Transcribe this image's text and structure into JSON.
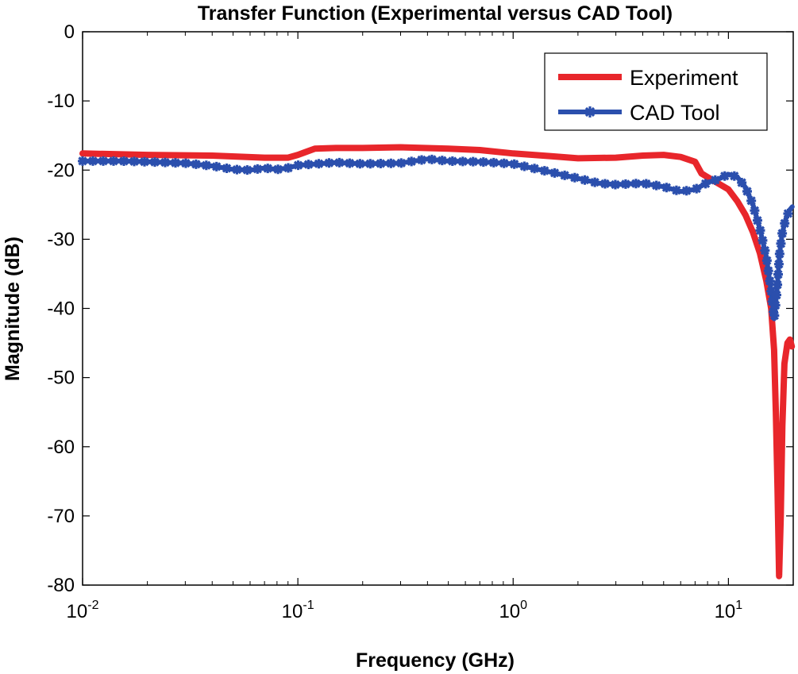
{
  "chart_data": {
    "type": "line",
    "title": "Transfer Function (Experimental versus CAD Tool)",
    "xlabel": "Frequency (GHz)",
    "ylabel": "Magnitude (dB)",
    "xscale": "log",
    "xlim": [
      0.01,
      20
    ],
    "ylim": [
      -80,
      0
    ],
    "xticks": [
      {
        "value": 0.01,
        "base": "10",
        "exp": "-2"
      },
      {
        "value": 0.1,
        "base": "10",
        "exp": "-1"
      },
      {
        "value": 1,
        "base": "10",
        "exp": "0"
      },
      {
        "value": 10,
        "base": "10",
        "exp": "1"
      }
    ],
    "yticks": [
      0,
      -10,
      -20,
      -30,
      -40,
      -50,
      -60,
      -70,
      -80
    ],
    "grid": false,
    "legend_position": "top-right",
    "series": [
      {
        "name": "Experiment",
        "color": "#e8262b",
        "marker": "none",
        "points": [
          [
            0.01,
            -17.6
          ],
          [
            0.02,
            -17.8
          ],
          [
            0.04,
            -17.9
          ],
          [
            0.07,
            -18.2
          ],
          [
            0.09,
            -18.2
          ],
          [
            0.1,
            -17.8
          ],
          [
            0.12,
            -16.9
          ],
          [
            0.15,
            -16.8
          ],
          [
            0.2,
            -16.8
          ],
          [
            0.3,
            -16.7
          ],
          [
            0.5,
            -16.9
          ],
          [
            0.7,
            -17.1
          ],
          [
            1.0,
            -17.6
          ],
          [
            1.5,
            -18.0
          ],
          [
            2.0,
            -18.3
          ],
          [
            3.0,
            -18.2
          ],
          [
            4.0,
            -17.9
          ],
          [
            5.0,
            -17.8
          ],
          [
            6.0,
            -18.1
          ],
          [
            7.0,
            -18.8
          ],
          [
            7.5,
            -20.5
          ],
          [
            8.5,
            -21.5
          ],
          [
            10.0,
            -22.8
          ],
          [
            11.0,
            -24.5
          ],
          [
            12.0,
            -26.5
          ],
          [
            13.0,
            -29.0
          ],
          [
            14.0,
            -32.0
          ],
          [
            15.0,
            -36.0
          ],
          [
            15.8,
            -40.0
          ],
          [
            16.3,
            -46.0
          ],
          [
            16.6,
            -55.0
          ],
          [
            16.9,
            -66.0
          ],
          [
            17.2,
            -78.7
          ],
          [
            17.5,
            -70.0
          ],
          [
            17.8,
            -57.0
          ],
          [
            18.2,
            -48.0
          ],
          [
            18.8,
            -45.0
          ],
          [
            19.3,
            -44.5
          ],
          [
            19.7,
            -45.5
          ]
        ]
      },
      {
        "name": "CAD Tool",
        "color": "#2b4fad",
        "marker": "asterisk",
        "points": [
          [
            0.01,
            -18.7
          ],
          [
            0.015,
            -18.7
          ],
          [
            0.02,
            -18.8
          ],
          [
            0.03,
            -19.0
          ],
          [
            0.04,
            -19.4
          ],
          [
            0.05,
            -19.9
          ],
          [
            0.06,
            -20.0
          ],
          [
            0.07,
            -19.7
          ],
          [
            0.08,
            -19.9
          ],
          [
            0.09,
            -19.7
          ],
          [
            0.1,
            -19.3
          ],
          [
            0.15,
            -18.9
          ],
          [
            0.2,
            -19.1
          ],
          [
            0.3,
            -19.0
          ],
          [
            0.4,
            -18.4
          ],
          [
            0.5,
            -18.7
          ],
          [
            0.7,
            -18.8
          ],
          [
            1.0,
            -19.1
          ],
          [
            1.5,
            -20.3
          ],
          [
            2.0,
            -21.2
          ],
          [
            2.5,
            -21.9
          ],
          [
            3.0,
            -22.1
          ],
          [
            4.0,
            -21.9
          ],
          [
            5.0,
            -22.4
          ],
          [
            6.0,
            -23.1
          ],
          [
            7.0,
            -22.8
          ],
          [
            8.0,
            -21.8
          ],
          [
            9.0,
            -21.3
          ],
          [
            10.0,
            -20.6
          ],
          [
            11.0,
            -21.0
          ],
          [
            12.0,
            -22.5
          ],
          [
            13.0,
            -25.0
          ],
          [
            14.0,
            -28.5
          ],
          [
            15.0,
            -32.5
          ],
          [
            15.8,
            -37.5
          ],
          [
            16.3,
            -41.5
          ],
          [
            16.8,
            -37.5
          ],
          [
            17.3,
            -32.0
          ],
          [
            17.8,
            -29.0
          ],
          [
            18.5,
            -27.0
          ],
          [
            19.2,
            -25.8
          ],
          [
            19.8,
            -25.3
          ]
        ]
      }
    ]
  }
}
